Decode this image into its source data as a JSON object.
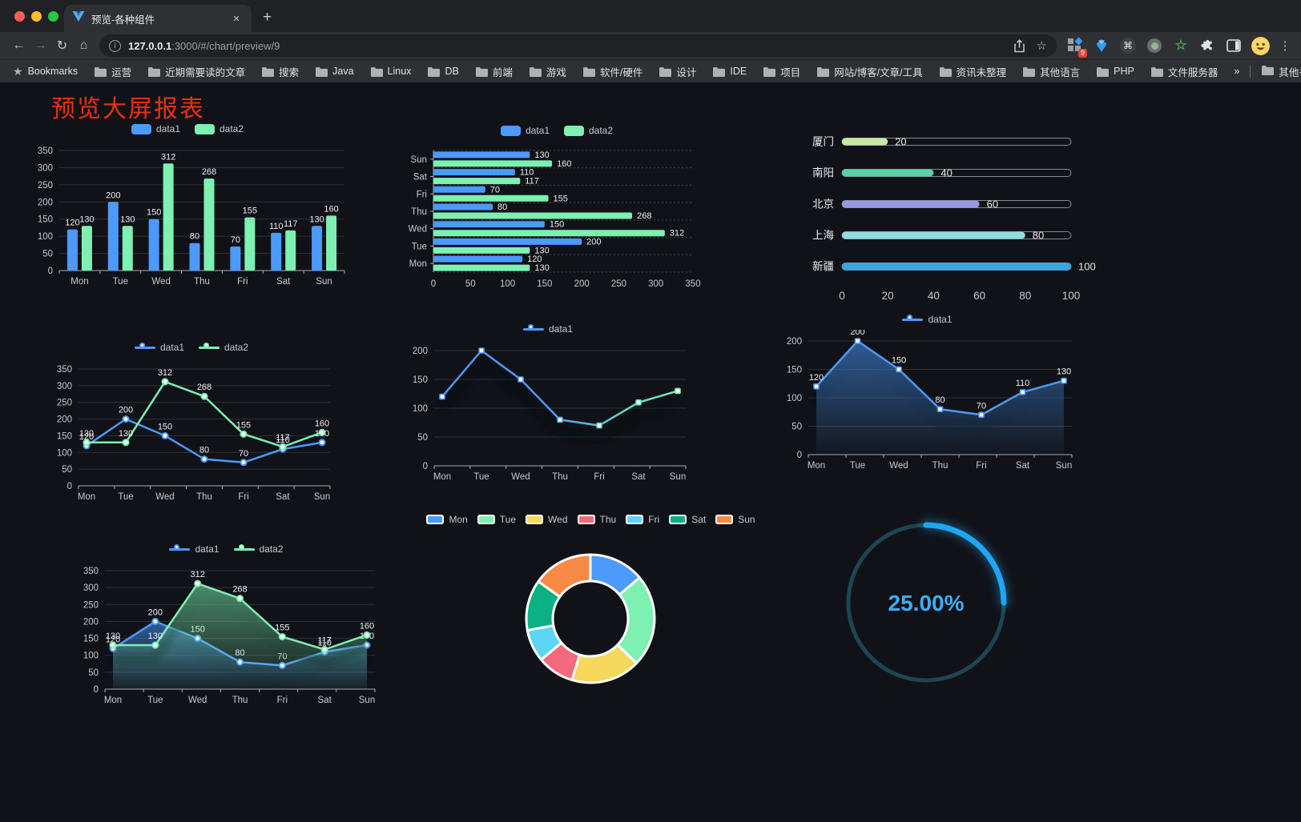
{
  "browser": {
    "tab": {
      "title": "预览-各种组件",
      "close_glyph": "×",
      "new_tab_glyph": "+"
    },
    "toolbar": {
      "back_glyph": "←",
      "forward_glyph": "→",
      "reload_glyph": "↻",
      "home_glyph": "⌂",
      "info_glyph": "i",
      "star_glyph": "☆",
      "cmd_glyph": "⌘",
      "menu_glyph": "⋮",
      "extension_badge": "9"
    },
    "url": {
      "host": "127.0.0.1",
      "path": ":3000/#/chart/preview/9"
    },
    "bookmarks_bar": {
      "star_filled_glyph": "★",
      "label": "Bookmarks",
      "items": [
        "运营",
        "近期需要读的文章",
        "搜索",
        "Java",
        "Linux",
        "DB",
        "前端",
        "游戏",
        "软件/硬件",
        "设计",
        "IDE",
        "项目",
        "网站/博客/文章/工具",
        "资讯未整理",
        "其他语言",
        "PHP",
        "文件服务器"
      ],
      "overflow_glyph": "»",
      "other_bookmarks": "其他书签"
    }
  },
  "page": {
    "title": "预览大屏报表",
    "title_color": "#EE2F10"
  },
  "chart_data": [
    {
      "id": "grouped-bar",
      "type": "bar",
      "categories": [
        "Mon",
        "Tue",
        "Wed",
        "Thu",
        "Fri",
        "Sat",
        "Sun"
      ],
      "series": [
        {
          "name": "data1",
          "color": "#4C9AFC",
          "values": [
            120,
            200,
            150,
            80,
            70,
            110,
            130
          ]
        },
        {
          "name": "data2",
          "color": "#7DF0B2",
          "values": [
            130,
            130,
            312,
            268,
            155,
            117,
            160
          ]
        }
      ],
      "ylim": [
        0,
        350
      ],
      "ystep": 50,
      "legend_position": "top",
      "grid": true
    },
    {
      "id": "horizontal-bar",
      "type": "bar-horizontal",
      "categories": [
        "Mon",
        "Tue",
        "Wed",
        "Thu",
        "Fri",
        "Sat",
        "Sun"
      ],
      "display_order_top_to_bottom": [
        "Sun",
        "Sat",
        "Fri",
        "Thu",
        "Wed",
        "Tue",
        "Mon"
      ],
      "series": [
        {
          "name": "data1",
          "color": "#4C9AFC",
          "values": [
            120,
            200,
            150,
            80,
            70,
            110,
            130
          ]
        },
        {
          "name": "data2",
          "color": "#7DF0B2",
          "values": [
            130,
            130,
            312,
            268,
            155,
            117,
            160
          ]
        }
      ],
      "xlim": [
        0,
        350
      ],
      "xstep": 50,
      "legend_position": "top"
    },
    {
      "id": "progress-bars",
      "type": "progress",
      "max": 100,
      "ticks": [
        0,
        20,
        40,
        60,
        80,
        100
      ],
      "items": [
        {
          "label": "厦门",
          "value": 20,
          "color": "#C9E9A2"
        },
        {
          "label": "南阳",
          "value": 40,
          "color": "#55D3A5"
        },
        {
          "label": "北京",
          "value": 60,
          "color": "#9598DF"
        },
        {
          "label": "上海",
          "value": 80,
          "color": "#8FDCDF"
        },
        {
          "label": "新疆",
          "value": 100,
          "color": "#39A5DE"
        }
      ]
    },
    {
      "id": "line-two-series",
      "type": "line",
      "categories": [
        "Mon",
        "Tue",
        "Wed",
        "Thu",
        "Fri",
        "Sat",
        "Sun"
      ],
      "series": [
        {
          "name": "data1",
          "color": "#4C9AFC",
          "values": [
            120,
            200,
            150,
            80,
            70,
            110,
            130
          ]
        },
        {
          "name": "data2",
          "color": "#7DF0B2",
          "values": [
            130,
            130,
            312,
            268,
            155,
            117,
            160
          ]
        }
      ],
      "ylim": [
        0,
        350
      ],
      "ystep": 50,
      "show_labels": true,
      "marker": "circle"
    },
    {
      "id": "line-gradient",
      "type": "line",
      "categories": [
        "Mon",
        "Tue",
        "Wed",
        "Thu",
        "Fri",
        "Sat",
        "Sun"
      ],
      "series": [
        {
          "name": "data1",
          "color": "#4C9AFC",
          "gradient_to": "#7DF0B2",
          "values": [
            120,
            200,
            150,
            80,
            70,
            110,
            130
          ]
        }
      ],
      "ylim": [
        0,
        200
      ],
      "ystep": 50,
      "show_labels": false,
      "marker": "square",
      "shadow": true
    },
    {
      "id": "area-single",
      "type": "line",
      "categories": [
        "Mon",
        "Tue",
        "Wed",
        "Thu",
        "Fri",
        "Sat",
        "Sun"
      ],
      "series": [
        {
          "name": "data1",
          "color": "#4C9AFC",
          "area": true,
          "values": [
            120,
            200,
            150,
            80,
            70,
            110,
            130
          ]
        }
      ],
      "ylim": [
        0,
        200
      ],
      "ystep": 50,
      "show_labels": true,
      "marker": "square",
      "shadow": true
    },
    {
      "id": "area-two-series",
      "type": "line",
      "categories": [
        "Mon",
        "Tue",
        "Wed",
        "Thu",
        "Fri",
        "Sat",
        "Sun"
      ],
      "series": [
        {
          "name": "data1",
          "color": "#4C9AFC",
          "area": true,
          "values": [
            120,
            200,
            150,
            80,
            70,
            110,
            130
          ]
        },
        {
          "name": "data2",
          "color": "#7DF0B2",
          "area": true,
          "values": [
            130,
            130,
            312,
            268,
            155,
            117,
            160
          ]
        }
      ],
      "ylim": [
        0,
        350
      ],
      "ystep": 50,
      "show_labels": true,
      "marker": "circle",
      "shadow": true
    },
    {
      "id": "donut",
      "type": "donut",
      "categories": [
        "Mon",
        "Tue",
        "Wed",
        "Thu",
        "Fri",
        "Sat",
        "Sun"
      ],
      "values": [
        120,
        200,
        150,
        80,
        70,
        110,
        130
      ],
      "colors": [
        "#4C9AFC",
        "#7DF0B2",
        "#F6D95C",
        "#F4697B",
        "#5CD5F2",
        "#0BB183",
        "#F78A45"
      ],
      "legend_position": "top"
    },
    {
      "id": "gauge",
      "type": "gauge",
      "value_percent": 25,
      "label": "25.00%",
      "arc_color": "#1FA6F2",
      "track_color": "#1C4752",
      "label_color": "#3EAEF4"
    }
  ]
}
